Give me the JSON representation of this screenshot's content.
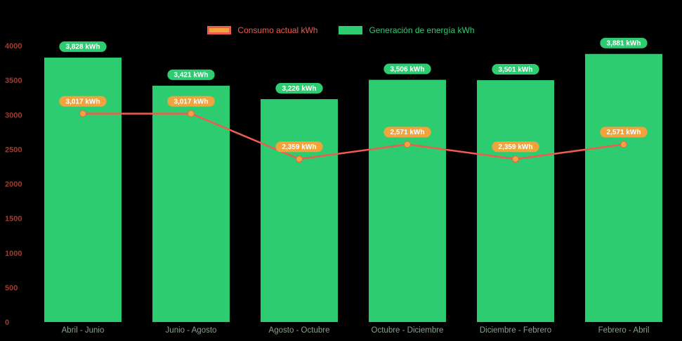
{
  "page": {
    "background": "#000000"
  },
  "legend": {
    "items": [
      {
        "id": "consumo",
        "label": "Consumo actual kWh",
        "text_color": "#ee5c4d",
        "box_border": "#ee5c4d",
        "box_fill": "#f2a33c"
      },
      {
        "id": "generacion",
        "label": "Generación de energía kWh",
        "text_color": "#2ecc71",
        "box_border": "#2ecc71",
        "box_fill": "#2ecc71"
      }
    ],
    "position": "top"
  },
  "chart_data": {
    "type": "bar+line",
    "title": "",
    "xlabel": "",
    "ylabel": "",
    "grid": false,
    "legend_position": "top",
    "categories": [
      "Abril - Junio",
      "Junio - Agosto",
      "Agosto - Octubre",
      "Octubre - Diciembre",
      "Diciembre - Febrero",
      "Febrero - Abril"
    ],
    "series": [
      {
        "name": "Generación de energía kWh",
        "type": "bar",
        "color": "#2ecc71",
        "badge_color": "#2ecc71",
        "values": [
          3828,
          3421,
          3226,
          3506,
          3501,
          3881
        ],
        "labels": [
          "3,828 kWh",
          "3,421 kWh",
          "3,226 kWh",
          "3,506 kWh",
          "3,501 kWh",
          "3,881 kWh"
        ]
      },
      {
        "name": "Consumo actual kWh",
        "type": "line",
        "line_color": "#ee5c4d",
        "point_color": "#f2a33c",
        "badge_color": "#f2a33c",
        "values": [
          3017,
          3017,
          2359,
          2571,
          2359,
          2571
        ],
        "labels": [
          "3,017 kWh",
          "3,017 kWh",
          "2,359 kWh",
          "2,571 kWh",
          "2,359 kWh",
          "2,571 kWh"
        ]
      }
    ],
    "ylim": [
      0,
      4000
    ],
    "yticks": [
      4000,
      3500,
      3000,
      2500,
      2000,
      1500,
      1000,
      500,
      0
    ],
    "y_tick_color": "#9e3c2f",
    "x_tick_color": "#87a18c",
    "badge_text_color": "#ffffff"
  }
}
